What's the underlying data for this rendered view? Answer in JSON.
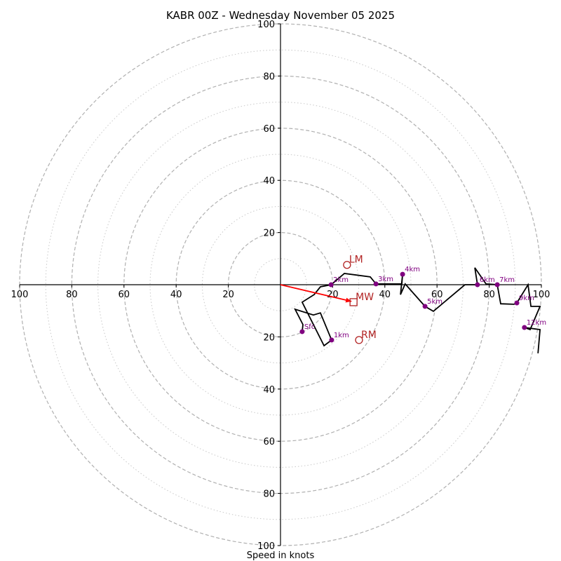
{
  "chart_data": {
    "type": "line",
    "subtype": "hodograph",
    "title": "KABR 00Z - Wednesday November 05 2025",
    "xlabel": "Speed in knots",
    "ylabel": "",
    "xlim": [
      -100,
      100
    ],
    "ylim": [
      -100,
      100
    ],
    "grid": "polar rings every 10 knots (dashed at 20-knot intervals, dotted between)",
    "ring_values": [
      10,
      20,
      30,
      40,
      50,
      60,
      70,
      80,
      90,
      100
    ],
    "x_tick_labels": [
      "100",
      "80",
      "60",
      "40",
      "20",
      "20",
      "40",
      "60",
      "80",
      "100"
    ],
    "x_tick_values": [
      -100,
      -80,
      -60,
      -40,
      -20,
      20,
      40,
      60,
      80,
      100
    ],
    "y_tick_labels": [
      "100",
      "80",
      "60",
      "40",
      "20",
      "20",
      "40",
      "60",
      "80",
      "100"
    ],
    "y_tick_values": [
      100,
      80,
      60,
      40,
      20,
      -20,
      -40,
      -60,
      -80,
      -100
    ],
    "units": "knots",
    "hodograph": {
      "color": "#000000",
      "points_uv": [
        [
          8.3,
          -18.0
        ],
        [
          8.6,
          -15.3
        ],
        [
          5.6,
          -9.4
        ],
        [
          12.6,
          -11.6
        ],
        [
          15.3,
          -10.8
        ],
        [
          19.6,
          -21.2
        ],
        [
          16.7,
          -23.4
        ],
        [
          8.3,
          -6.7
        ],
        [
          12.9,
          -3.8
        ],
        [
          15.3,
          -0.8
        ],
        [
          19.4,
          0.0
        ],
        [
          24.5,
          4.3
        ],
        [
          34.4,
          3.0
        ],
        [
          36.6,
          0.3
        ],
        [
          46.5,
          0.3
        ],
        [
          46.8,
          4.0
        ],
        [
          46.0,
          -3.8
        ],
        [
          47.8,
          0.3
        ],
        [
          55.4,
          -8.3
        ],
        [
          58.6,
          -10.2
        ],
        [
          70.7,
          0.0
        ],
        [
          75.5,
          0.0
        ],
        [
          74.5,
          6.5
        ],
        [
          78.8,
          0.3
        ],
        [
          83.1,
          0.0
        ],
        [
          84.4,
          -7.3
        ],
        [
          89.5,
          -7.5
        ],
        [
          90.6,
          -7.0
        ],
        [
          94.9,
          0.0
        ],
        [
          96.0,
          -8.3
        ],
        [
          99.5,
          -8.3
        ],
        [
          95.7,
          -17.2
        ],
        [
          93.5,
          -16.4
        ],
        [
          99.5,
          -17.2
        ],
        [
          98.7,
          -26.3
        ]
      ]
    },
    "height_markers": {
      "color": "#800080",
      "points": [
        {
          "label": "Sfc",
          "u": 8.3,
          "v": -18.0
        },
        {
          "label": "1km",
          "u": 19.6,
          "v": -21.2
        },
        {
          "label": "2km",
          "u": 19.4,
          "v": 0.0
        },
        {
          "label": "3km",
          "u": 36.6,
          "v": 0.3
        },
        {
          "label": "4km",
          "u": 46.8,
          "v": 4.0
        },
        {
          "label": "5km",
          "u": 55.4,
          "v": -8.3
        },
        {
          "label": "6km",
          "u": 75.5,
          "v": 0.0
        },
        {
          "label": "7km",
          "u": 83.1,
          "v": 0.0
        },
        {
          "label": "9km",
          "u": 90.6,
          "v": -7.0
        },
        {
          "label": "12km",
          "u": 93.5,
          "v": -16.4
        }
      ]
    },
    "storm_motions": {
      "color": "#b22222",
      "items": [
        {
          "label": "LM",
          "marker": "circle",
          "u": 25.5,
          "v": 7.6
        },
        {
          "label": "MW",
          "marker": "square",
          "u": 28.0,
          "v": -6.7
        },
        {
          "label": "RM",
          "marker": "circle",
          "u": 30.1,
          "v": -21.2
        }
      ]
    },
    "mean_wind_vector": {
      "color": "#ff0000",
      "from": [
        0,
        0
      ],
      "to": [
        27.2,
        -6.4
      ]
    }
  }
}
